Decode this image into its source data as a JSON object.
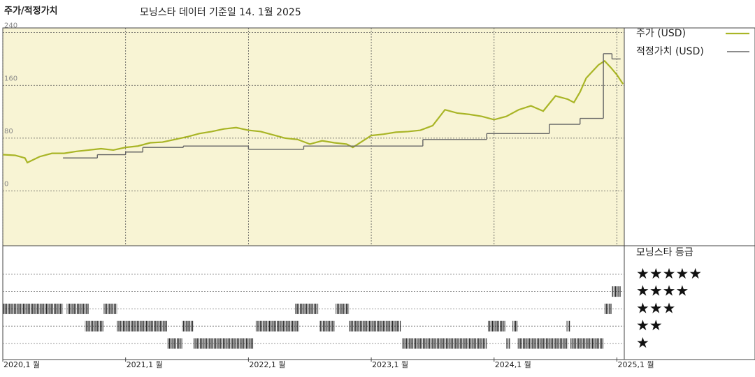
{
  "chart_data": {
    "type": "line",
    "title": "주가/적정가치",
    "subtitle": "모닝스타 데이터 기준일 14. 1월 2025",
    "xlim": [
      2020,
      2025.06
    ],
    "xticks": [
      {
        "value": 2020,
        "label": "2020,1 월"
      },
      {
        "value": 2021,
        "label": "2021,1 월"
      },
      {
        "value": 2022,
        "label": "2022,1 월"
      },
      {
        "value": 2023,
        "label": "2023,1 월"
      },
      {
        "value": 2024,
        "label": "2024,1 월"
      },
      {
        "value": 2025,
        "label": "2025,1 월"
      }
    ],
    "ylim": [
      -83,
      247
    ],
    "yticks": [
      0,
      80,
      160,
      240
    ],
    "grid": true,
    "series": [
      {
        "name": "주가 (USD)",
        "color": "#a9b526",
        "step": false,
        "x": [
          2020.0,
          2020.1,
          2020.18,
          2020.2,
          2020.3,
          2020.4,
          2020.5,
          2020.6,
          2020.7,
          2020.8,
          2020.9,
          2021.0,
          2021.1,
          2021.2,
          2021.3,
          2021.4,
          2021.5,
          2021.6,
          2021.7,
          2021.8,
          2021.9,
          2022.0,
          2022.1,
          2022.2,
          2022.3,
          2022.4,
          2022.5,
          2022.6,
          2022.7,
          2022.8,
          2022.85,
          2022.9,
          2023.0,
          2023.1,
          2023.2,
          2023.3,
          2023.4,
          2023.5,
          2023.6,
          2023.7,
          2023.8,
          2023.9,
          2024.0,
          2024.1,
          2024.2,
          2024.3,
          2024.4,
          2024.5,
          2024.6,
          2024.65,
          2024.7,
          2024.75,
          2024.8,
          2024.85,
          2024.9,
          2024.95,
          2025.0,
          2025.05
        ],
        "values": [
          55,
          54,
          50,
          43,
          52,
          57,
          57,
          60,
          62,
          64,
          62,
          66,
          68,
          73,
          74,
          78,
          82,
          87,
          90,
          94,
          96,
          92,
          90,
          85,
          80,
          78,
          71,
          76,
          73,
          71,
          66,
          72,
          84,
          86,
          89,
          90,
          92,
          99,
          123,
          118,
          116,
          113,
          108,
          113,
          123,
          129,
          121,
          144,
          139,
          134,
          150,
          171,
          181,
          191,
          197,
          187,
          176,
          162
        ]
      },
      {
        "name": "적정가치 (USD)",
        "color": "#666666",
        "step": true,
        "x": [
          2020.49,
          2020.77,
          2021.0,
          2021.14,
          2021.47,
          2022.0,
          2022.45,
          2023.42,
          2023.94,
          2024.45,
          2024.7,
          2024.89,
          2024.96,
          2025.03
        ],
        "values": [
          50,
          55,
          59,
          66,
          68,
          63,
          68,
          78,
          87,
          101,
          110,
          208,
          200,
          200
        ]
      }
    ],
    "rating_title": "모닝스타 등급",
    "rating_labels": [
      "★★★★★",
      "★★★★",
      "★★★",
      "★★",
      "★"
    ],
    "ratings": [
      {
        "start": 2020.0,
        "end": 2020.49,
        "stars": 3
      },
      {
        "start": 2020.52,
        "end": 2020.7,
        "stars": 3
      },
      {
        "start": 2020.82,
        "end": 2020.93,
        "stars": 3
      },
      {
        "start": 2022.38,
        "end": 2022.57,
        "stars": 3
      },
      {
        "start": 2022.71,
        "end": 2022.82,
        "stars": 3
      },
      {
        "start": 2024.9,
        "end": 2024.96,
        "stars": 3
      },
      {
        "start": 2020.67,
        "end": 2020.82,
        "stars": 2
      },
      {
        "start": 2020.93,
        "end": 2021.34,
        "stars": 2
      },
      {
        "start": 2021.46,
        "end": 2021.55,
        "stars": 2
      },
      {
        "start": 2022.06,
        "end": 2022.41,
        "stars": 2
      },
      {
        "start": 2022.58,
        "end": 2022.7,
        "stars": 2
      },
      {
        "start": 2022.82,
        "end": 2023.24,
        "stars": 2
      },
      {
        "start": 2023.95,
        "end": 2024.09,
        "stars": 2
      },
      {
        "start": 2024.15,
        "end": 2024.19,
        "stars": 2
      },
      {
        "start": 2024.59,
        "end": 2024.62,
        "stars": 2
      },
      {
        "start": 2021.34,
        "end": 2021.46,
        "stars": 1
      },
      {
        "start": 2021.55,
        "end": 2022.04,
        "stars": 1
      },
      {
        "start": 2023.25,
        "end": 2023.94,
        "stars": 1
      },
      {
        "start": 2024.1,
        "end": 2024.13,
        "stars": 1
      },
      {
        "start": 2024.19,
        "end": 2024.6,
        "stars": 1
      },
      {
        "start": 2024.62,
        "end": 2024.89,
        "stars": 1
      },
      {
        "start": 2024.96,
        "end": 2025.03,
        "stars": 4
      }
    ]
  }
}
